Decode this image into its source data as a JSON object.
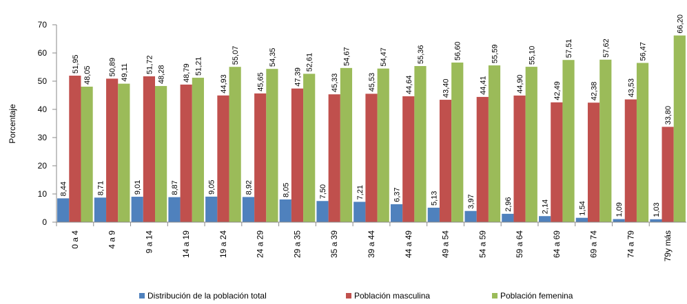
{
  "chart_data": {
    "type": "bar",
    "y_label": "Porcentaje",
    "categories": [
      "0 a 4",
      "4 a 9",
      "9 a 14",
      "14 a 19",
      "19 a 24",
      "24 a 29",
      "29 a 35",
      "35 a 39",
      "39 a 44",
      "44 a 49",
      "49 a 54",
      "54 a 59",
      "59 a 64",
      "64 a 69",
      "69 a 74",
      "74 a 79",
      "79y más"
    ],
    "series": [
      {
        "name": "Distribución de la población total",
        "color": "#4f81bd",
        "values": [
          8.44,
          8.71,
          9.01,
          8.87,
          9.05,
          8.92,
          8.05,
          7.5,
          7.21,
          6.37,
          5.13,
          3.97,
          2.96,
          2.14,
          1.54,
          1.09,
          1.03
        ],
        "value_labels": [
          "8,44",
          "8,71",
          "9,01",
          "8,87",
          "9,05",
          "8,92",
          "8,05",
          "7,50",
          "7,21",
          "6,37",
          "5,13",
          "3,97",
          "2,96",
          "2,14",
          "1,54",
          "1,09",
          "1,03"
        ]
      },
      {
        "name": "Población masculina",
        "color": "#c0504d",
        "values": [
          51.95,
          50.89,
          51.72,
          48.79,
          44.93,
          45.65,
          47.39,
          45.33,
          45.53,
          44.64,
          43.4,
          44.41,
          44.9,
          42.49,
          42.38,
          43.53,
          33.8
        ],
        "value_labels": [
          "51,95",
          "50,89",
          "51,72",
          "48,79",
          "44,93",
          "45,65",
          "47,39",
          "45,33",
          "45,53",
          "44,64",
          "43,40",
          "44,41",
          "44,90",
          "42,49",
          "42,38",
          "43,53",
          "33,80"
        ]
      },
      {
        "name": "Población femenina",
        "color": "#9bbb59",
        "values": [
          48.05,
          49.11,
          48.28,
          51.21,
          55.07,
          54.35,
          52.61,
          54.67,
          54.47,
          55.36,
          56.6,
          55.59,
          55.1,
          57.51,
          57.62,
          56.47,
          66.2
        ],
        "value_labels": [
          "48,05",
          "49,11",
          "48,28",
          "51,21",
          "55,07",
          "54,35",
          "52,61",
          "54,67",
          "54,47",
          "55,36",
          "56,60",
          "55,59",
          "55,10",
          "57,51",
          "57,62",
          "56,47",
          "66,20"
        ]
      }
    ],
    "ylim": [
      0,
      70
    ],
    "yticks": [
      0,
      10,
      20,
      30,
      40,
      50,
      60,
      70
    ]
  }
}
